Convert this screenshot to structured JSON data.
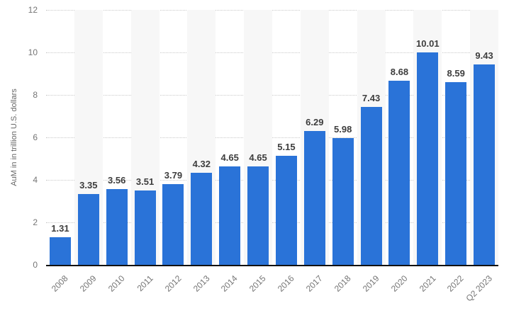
{
  "chart_data": {
    "type": "bar",
    "title": "",
    "xlabel": "",
    "ylabel": "AuM in in trillion U.S. dollars",
    "categories": [
      "2008",
      "2009",
      "2010",
      "2011",
      "2012",
      "2013",
      "2014",
      "2015",
      "2016",
      "2017",
      "2018",
      "2019",
      "2020",
      "2021",
      "2022",
      "Q2 2023"
    ],
    "values": [
      1.31,
      3.35,
      3.56,
      3.51,
      3.79,
      4.32,
      4.65,
      4.65,
      5.15,
      6.29,
      5.98,
      7.43,
      8.68,
      10.01,
      8.59,
      9.43
    ],
    "value_labels": [
      "1.31",
      "3.35",
      "3.56",
      "3.51",
      "3.79",
      "4.32",
      "4.65",
      "4.65",
      "5.15",
      "6.29",
      "5.98",
      "7.43",
      "8.68",
      "10.01",
      "8.59",
      "9.43"
    ],
    "ylim": [
      0,
      12
    ],
    "yticks": [
      0,
      2,
      4,
      6,
      8,
      10,
      12
    ],
    "ytick_labels_top_to_bottom": [
      "12",
      "10",
      "8",
      "6",
      "4",
      "2",
      "0"
    ],
    "grid": "horizontal-dotted",
    "legend": "none",
    "colors": {
      "bar": "#2a73d8",
      "stripe": "#f7f7f7",
      "gridline": "#c9c9c9",
      "axis_line": "#111111",
      "tick_text": "#757575",
      "value_label_text": "#3d3d3d",
      "y_title_text": "#666666"
    }
  }
}
